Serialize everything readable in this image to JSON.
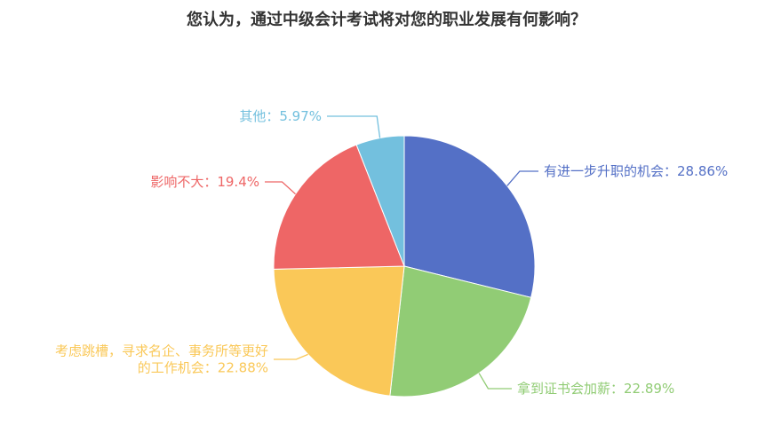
{
  "chart_data": {
    "type": "pie",
    "title": "您认为，通过中级会计考试将对您的职业发展有何影响？",
    "slices": [
      {
        "label": "有进一步升职的机会",
        "value": 28.86,
        "display": "有进一步升职的机会：28.86%",
        "color": "#5470c6"
      },
      {
        "label": "拿到证书会加薪",
        "value": 22.89,
        "display": "拿到证书会加薪：22.89%",
        "color": "#91cc75"
      },
      {
        "label": "考虑跳槽，寻求名企、事务所等更好的工作机会",
        "value": 22.88,
        "display_lines": [
          "考虑跳槽，寻求名企、事务所等更好",
          "的工作机会：22.88%"
        ],
        "color": "#fac858"
      },
      {
        "label": "影响不大",
        "value": 19.4,
        "display": "影响不大：19.4%",
        "color": "#ee6666"
      },
      {
        "label": "其他",
        "value": 5.97,
        "display": "其他：5.97%",
        "color": "#73c0de"
      }
    ]
  }
}
